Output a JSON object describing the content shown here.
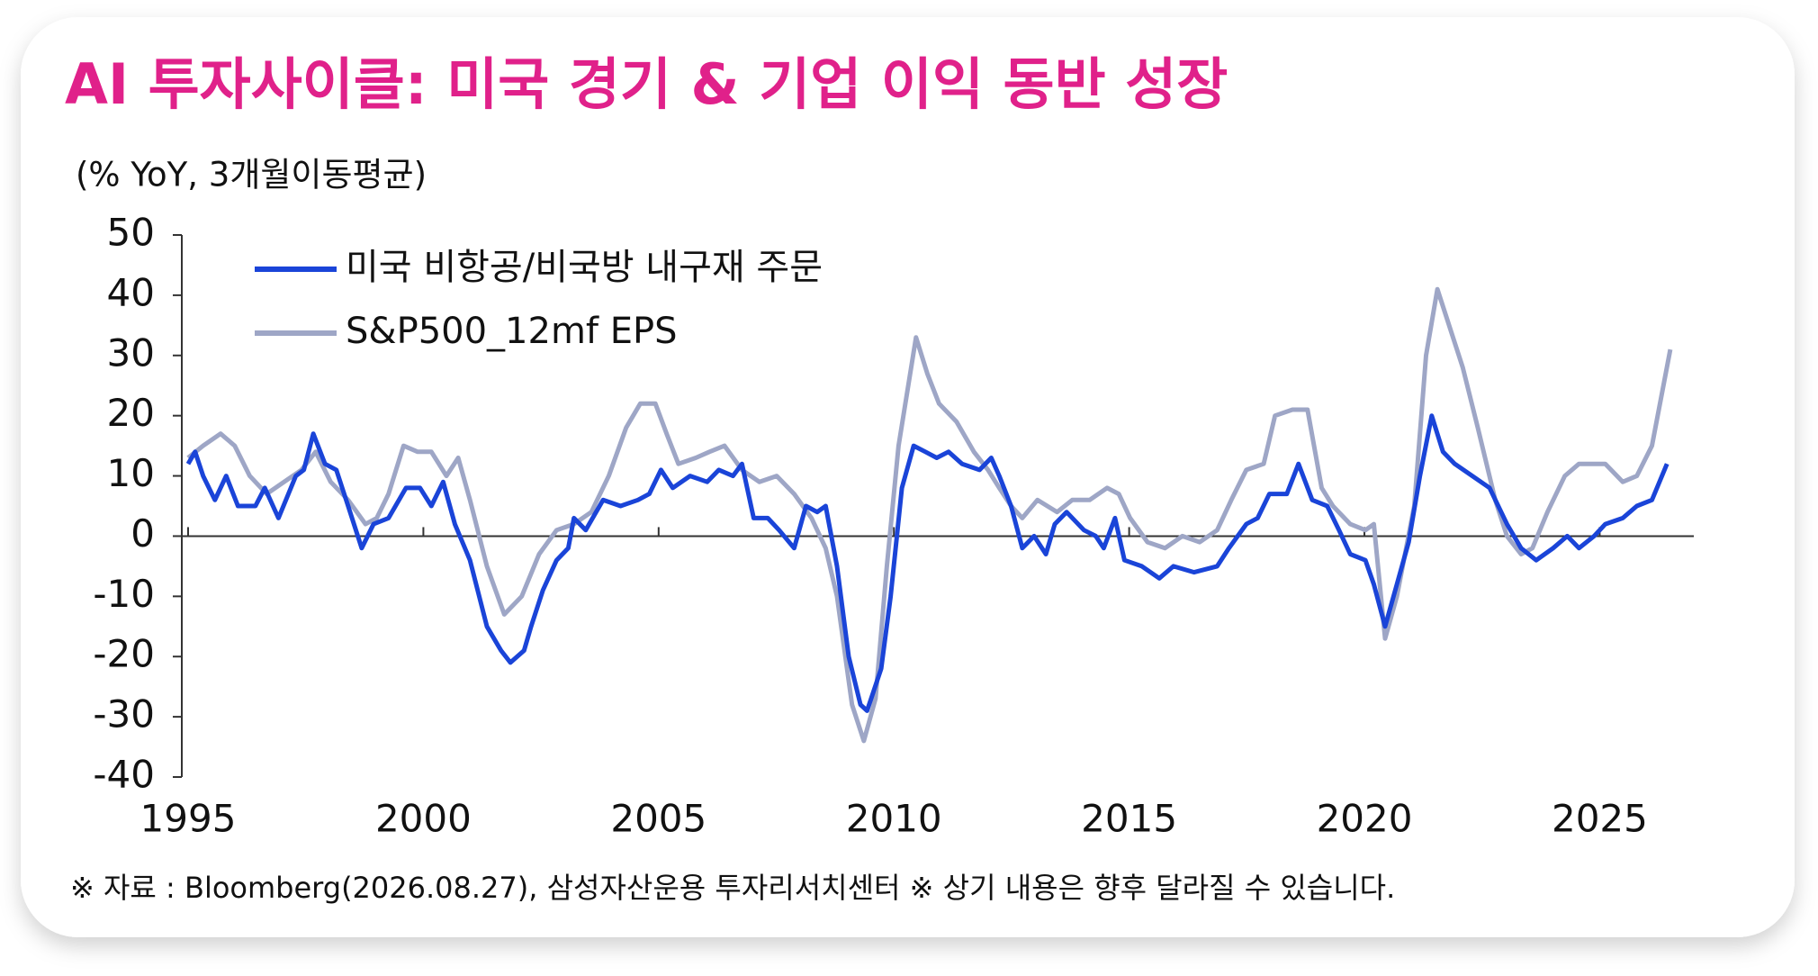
{
  "chart_data": {
    "type": "line",
    "title": "AI 투자사이클: 미국 경기 & 기업 이익 동반 성장",
    "subtitle": "(% YoY, 3개월이동평균)",
    "source": "※ 자료 : Bloomberg(2026.08.27), 삼성자산운용 투자리서치센터 ※ 상기 내용은 향후 달라질 수 있습니다.",
    "xlim": [
      1995,
      2027
    ],
    "xticks": [
      1995,
      2000,
      2005,
      2010,
      2015,
      2020,
      2025
    ],
    "ylim": [
      -40,
      50
    ],
    "yticks": [
      -40,
      -30,
      -20,
      -10,
      0,
      10,
      20,
      30,
      40,
      50
    ],
    "legend": "top-left",
    "series": [
      {
        "name": "미국 비항공/비국방 내구재 주문",
        "color": "#1a44d8",
        "x": [
          1995.0,
          1995.15,
          1995.32,
          1995.57,
          1995.81,
          1996.06,
          1996.43,
          1996.63,
          1996.92,
          1997.29,
          1997.46,
          1997.66,
          1997.91,
          1998.15,
          1998.4,
          1998.69,
          1998.94,
          1999.26,
          1999.63,
          1999.93,
          2000.17,
          2000.42,
          2000.67,
          2000.99,
          2001.35,
          2001.65,
          2001.85,
          2002.14,
          2002.29,
          2002.54,
          2002.83,
          2003.08,
          2003.2,
          2003.45,
          2003.82,
          2004.19,
          2004.56,
          2004.8,
          2005.05,
          2005.3,
          2005.67,
          2006.03,
          2006.28,
          2006.58,
          2006.77,
          2007.02,
          2007.32,
          2007.56,
          2007.88,
          2008.13,
          2008.37,
          2008.55,
          2008.79,
          2009.04,
          2009.29,
          2009.43,
          2009.73,
          2009.93,
          2010.17,
          2010.42,
          2010.67,
          2010.91,
          2011.16,
          2011.45,
          2011.82,
          2012.07,
          2012.24,
          2012.49,
          2012.73,
          2012.98,
          2013.23,
          2013.42,
          2013.67,
          2014.04,
          2014.29,
          2014.46,
          2014.7,
          2014.9,
          2015.27,
          2015.64,
          2015.94,
          2016.38,
          2016.87,
          2017.12,
          2017.49,
          2017.73,
          2017.98,
          2018.35,
          2018.6,
          2018.89,
          2019.21,
          2019.46,
          2019.7,
          2020.02,
          2020.2,
          2020.44,
          2020.69,
          2020.94,
          2021.18,
          2021.43,
          2021.67,
          2021.92,
          2022.29,
          2022.66,
          2023.03,
          2023.33,
          2023.65,
          2024.01,
          2024.31,
          2024.56,
          2024.88,
          2025.12,
          2025.49,
          2025.79,
          2026.11,
          2026.43
        ],
        "values": [
          12,
          14,
          10,
          6,
          10,
          5,
          5,
          8,
          3,
          10,
          11,
          17,
          12,
          11,
          5,
          -2,
          2,
          3,
          8,
          8,
          5,
          9,
          2,
          -4,
          -15,
          -19,
          -21,
          -19,
          -15,
          -9,
          -4,
          -2,
          3,
          1,
          6,
          5,
          6,
          7,
          11,
          8,
          10,
          9,
          11,
          10,
          12,
          3,
          3,
          1,
          -2,
          5,
          4,
          5,
          -5,
          -20,
          -28,
          -29,
          -22,
          -10,
          8,
          15,
          14,
          13,
          14,
          12,
          11,
          13,
          10,
          5,
          -2,
          0,
          -3,
          2,
          4,
          1,
          0,
          -2,
          3,
          -4,
          -5,
          -7,
          -5,
          -6,
          -5,
          -2,
          2,
          3,
          7,
          7,
          12,
          6,
          5,
          1,
          -3,
          -4,
          -8,
          -15,
          -8,
          -1,
          10,
          20,
          14,
          12,
          10,
          8,
          2,
          -2,
          -4,
          -2,
          0,
          -2,
          0,
          2,
          3,
          5,
          6,
          12
        ]
      },
      {
        "name": "S&P500_12mf EPS",
        "color": "#9ea6c6",
        "x": [
          1995.0,
          1995.32,
          1995.69,
          1995.99,
          1996.31,
          1996.67,
          1997.04,
          1997.41,
          1997.71,
          1998.03,
          1998.4,
          1998.77,
          1999.01,
          1999.26,
          1999.58,
          1999.88,
          2000.17,
          2000.49,
          2000.74,
          2000.99,
          2001.35,
          2001.72,
          2002.09,
          2002.46,
          2002.83,
          2003.2,
          2003.57,
          2003.94,
          2004.31,
          2004.61,
          2004.93,
          2005.17,
          2005.42,
          2005.79,
          2006.08,
          2006.4,
          2006.77,
          2007.14,
          2007.51,
          2007.88,
          2008.25,
          2008.55,
          2008.79,
          2009.11,
          2009.36,
          2009.61,
          2009.85,
          2010.1,
          2010.47,
          2010.71,
          2010.96,
          2011.33,
          2011.7,
          2012.0,
          2012.24,
          2012.49,
          2012.73,
          2013.05,
          2013.47,
          2013.79,
          2014.16,
          2014.53,
          2014.78,
          2015.02,
          2015.39,
          2015.76,
          2016.13,
          2016.5,
          2016.87,
          2017.17,
          2017.49,
          2017.86,
          2018.1,
          2018.47,
          2018.79,
          2019.09,
          2019.33,
          2019.7,
          2020.02,
          2020.2,
          2020.44,
          2020.69,
          2021.06,
          2021.31,
          2021.55,
          2021.8,
          2022.09,
          2022.41,
          2022.78,
          2023.03,
          2023.33,
          2023.57,
          2023.89,
          2024.26,
          2024.56,
          2024.88,
          2025.12,
          2025.49,
          2025.79,
          2026.11,
          2026.5
        ],
        "values": [
          13,
          15,
          17,
          15,
          10,
          7,
          9,
          11,
          14,
          9,
          6,
          2,
          3,
          7,
          15,
          14,
          14,
          10,
          13,
          6,
          -5,
          -13,
          -10,
          -3,
          1,
          2,
          4,
          10,
          18,
          22,
          22,
          17,
          12,
          13,
          14,
          15,
          11,
          9,
          10,
          7,
          3,
          -2,
          -10,
          -28,
          -34,
          -27,
          -5,
          15,
          33,
          27,
          22,
          19,
          14,
          11,
          8,
          5,
          3,
          6,
          4,
          6,
          6,
          8,
          7,
          3,
          -1,
          -2,
          0,
          -1,
          1,
          6,
          11,
          12,
          20,
          21,
          21,
          8,
          5,
          2,
          1,
          2,
          -17,
          -10,
          5,
          30,
          41,
          35,
          28,
          18,
          6,
          0,
          -3,
          -2,
          4,
          10,
          12,
          12,
          12,
          9,
          10,
          15,
          31
        ]
      }
    ]
  }
}
